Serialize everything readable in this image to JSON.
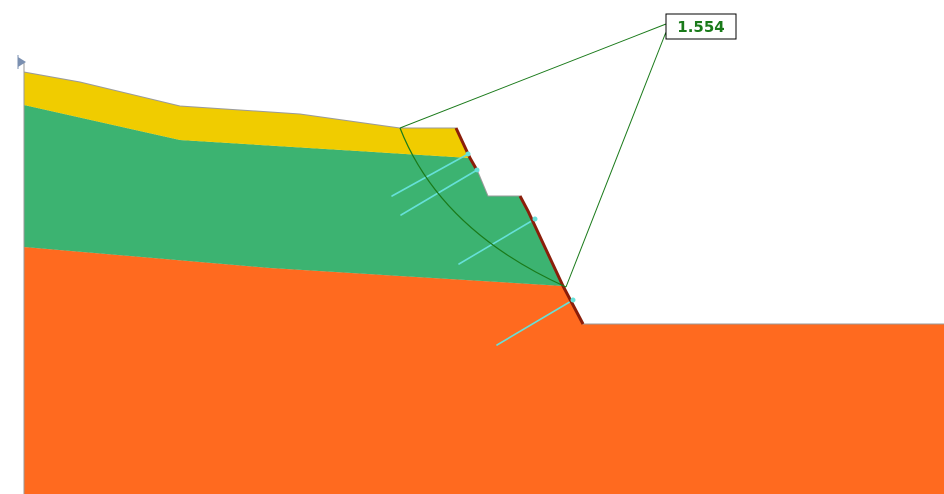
{
  "analysis": {
    "factor_of_safety": "1.554"
  },
  "colors": {
    "background": "#ffffff",
    "top_layer": "#f0cc00",
    "middle_layer": "#3cb371",
    "bottom_layer": "#ff6a1f",
    "slip_surface": "#1a7a1a",
    "fos_text": "#1a7a1a",
    "nails": "#66e0d8",
    "facing": "#8b1e0a",
    "boundary": "#9a9a9a"
  },
  "icons": {
    "origin_marker": "axis-marker-icon"
  }
}
